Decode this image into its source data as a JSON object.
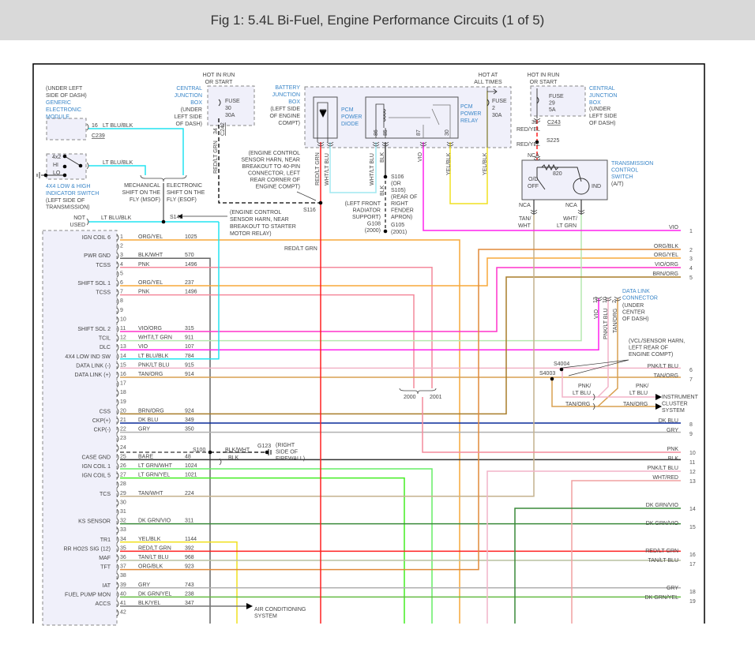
{
  "title": "Fig 1: 5.4L Bi-Fuel, Engine Performance Circuits (1 of 5)",
  "colors": {
    "ORG/YEL": "#f7a83a",
    "PNK": "#f48a9c",
    "BLK/WHT": "#666666",
    "VIO/ORG": "#ff33cc",
    "WHT/LT GRN": "#b6e8b0",
    "VIO": "#ff22ee",
    "LT BLU/BLK": "#22e4f0",
    "PNK/LT BLU": "#f2b4c8",
    "TAN/ORG": "#d9a050",
    "BRN/ORG": "#a87d2a",
    "DK BLU": "#0a2a9a",
    "GRY": "#b0b0b0",
    "BARE": "#333333",
    "LT GRN/WHT": "#66ee66",
    "LT GRN/YEL": "#44ee22",
    "TAN/WHT": "#c4b28e",
    "DK GRN/VIO": "#3a8a3a",
    "YEL/BLK": "#f0e020",
    "RED/LT GRN": "#ff2020",
    "TAN/LT BLU": "#b8c0a0",
    "ORG/BLK": "#e08a3a",
    "DK GRN/YEL": "#66bb44",
    "BLK/YEL": "#777777",
    "WHT/RED": "#f0a0a0",
    "WHT/LT BLU": "#a0e8f0",
    "BLK": "#444444",
    "RED/YEL": "#ff2020",
    "module_fill": "#f0f0fa",
    "label_blue": "#3a86c8"
  },
  "gem": {
    "location": [
      "(UNDER LEFT",
      "SIDE OF DASH)"
    ],
    "name": [
      "GENERIC",
      "ELECTRONIC",
      "MODULE"
    ],
    "pin": "16",
    "wire": "LT BLU/BLK",
    "connector": "C239"
  },
  "switch4x4": {
    "positions": [
      "4x2",
      "HI",
      "LO"
    ],
    "wire": "LT BLU/BLK",
    "name": [
      "4X4 LOW & HIGH",
      "INDICATOR SWITCH"
    ],
    "location": [
      "(LEFT SIDE OF",
      "TRANSMISSION)"
    ]
  },
  "shift": {
    "mechanical": [
      "MECHANICAL",
      "SHIFT ON THE",
      "FLY (MSOF)"
    ],
    "electronic": [
      "ELECTRONIC",
      "SHIFT ON THE",
      "FLY (ESOF)"
    ]
  },
  "not_used": {
    "text": [
      "NOT",
      "USED"
    ],
    "wire": "LT BLU/BLK",
    "splice": "S142",
    "note": [
      "(ENGINE CONTROL",
      "SENSOR HARN, NEAR",
      "BREAKOUT TO STARTER",
      "MOTOR RELAY)"
    ]
  },
  "cjb1": {
    "hot": [
      "HOT IN RUN",
      "OR START"
    ],
    "name": [
      "CENTRAL",
      "JUNCTION",
      "BOX"
    ],
    "location": [
      "(UNDER",
      "LEFT SIDE",
      "OF DASH)"
    ],
    "fuse": [
      "FUSE",
      "30",
      "30A"
    ],
    "pin": "34",
    "connector": "C242",
    "wire": "RED/LT GRN"
  },
  "s116": {
    "note": [
      "(ENGINE CONTROL",
      "SENSOR HARN, NEAR",
      "BREAKOUT TO 40-PIN",
      "CONNECTOR, LEFT",
      "REAR CORNER OF",
      "ENGINE COMPT)"
    ],
    "splice": "S116"
  },
  "bjb": {
    "name": [
      "BATTERY",
      "JUNCTION",
      "BOX"
    ],
    "location": [
      "(LEFT SIDE",
      "OF ENGINE",
      "COMPT)"
    ],
    "diode": [
      "PCM",
      "POWER",
      "DIODE"
    ],
    "relay": [
      "PCM",
      "POWER",
      "RELAY"
    ],
    "relay_pins": [
      "86",
      "85",
      "87",
      "30"
    ],
    "hot": [
      "HOT AT",
      "ALL TIMES"
    ],
    "fuse": [
      "FUSE",
      "2",
      "30A"
    ],
    "wires": [
      "RED/LT GRN",
      "WHT/LT BLU",
      "WHT/LT BLU",
      "BLK",
      "VIO",
      "YEL/BLK",
      "YEL/BLK",
      "BLK"
    ]
  },
  "ground": {
    "splice": [
      "S106",
      "(OR",
      "S105)",
      "(REAR OF",
      "RIGHT",
      "FENDER",
      "APRON)"
    ],
    "g108": [
      "(LEFT FRONT",
      "RADIATOR",
      "SUPPORT)",
      "G108",
      "(2000)"
    ],
    "g105": [
      "G105",
      "(2001)"
    ]
  },
  "cjb2": {
    "hot": [
      "HOT IN RUN",
      "OR START"
    ],
    "fuse": [
      "FUSE",
      "29",
      "5A"
    ],
    "name": [
      "CENTRAL",
      "JUNCTION",
      "BOX"
    ],
    "location": [
      "(UNDER",
      "LEFT SIDE",
      "OF DASH)"
    ],
    "pin": "31",
    "connector": "C243",
    "wire1": "RED/YEL",
    "splice": "S225",
    "wire2": "RED/YEL",
    "nca": "NCA"
  },
  "tcs": {
    "name": [
      "TRANSMISSION",
      "CONTROL",
      "SWITCH"
    ],
    "sub": "(A/T)",
    "resistor": "820",
    "od": [
      "O/D",
      "OFF"
    ],
    "ind": "IND",
    "nca": "NCA",
    "wire_left": [
      "TAN/",
      "WHT"
    ],
    "wire_right": [
      "WHT/",
      "LT GRN"
    ]
  },
  "dlc": {
    "name": [
      "DATA LINK",
      "CONNECTOR"
    ],
    "location": [
      "(UNDER",
      "CENTER",
      "OF DASH)"
    ],
    "pins": [
      "13",
      "10",
      "2"
    ],
    "wires": [
      "VIO",
      "PNK/LT BLU",
      "TAN/ORG"
    ]
  },
  "vcl": {
    "note": [
      "(VCL/SENSOR HARN,",
      "LEFT REAR OF",
      "ENGINE COMPT)"
    ],
    "s4004": "S4004",
    "s4003": "S4003",
    "pnk": [
      "PNK/",
      "LT BLU"
    ],
    "tan": "TAN/ORG",
    "cluster": [
      "INSTRUMENT",
      "CLUSTER",
      "SYSTEM"
    ]
  },
  "years": [
    "2000",
    "2001"
  ],
  "mid_label": "RED/LT GRN",
  "s100": {
    "splice": "S100",
    "wire1": "BLK/WHT",
    "wire2": "BLK",
    "ground": "G123",
    "note": [
      "(RIGHT",
      "SIDE OF",
      "FIREWALL)"
    ]
  },
  "ac": [
    "AIR CONDITIONING",
    "SYSTEM"
  ],
  "pins": [
    {
      "pin": "1",
      "name": "IGN COIL 6",
      "color": "ORG/YEL",
      "circuit": "1025"
    },
    {
      "pin": "2",
      "name": "",
      "color": "",
      "circuit": ""
    },
    {
      "pin": "3",
      "name": "PWR GND",
      "color": "BLK/WHT",
      "circuit": "570"
    },
    {
      "pin": "4",
      "name": "TCSS",
      "color": "PNK",
      "circuit": "1496"
    },
    {
      "pin": "5",
      "name": "",
      "color": "",
      "circuit": ""
    },
    {
      "pin": "6",
      "name": "SHIFT SOL 1",
      "color": "ORG/YEL",
      "circuit": "237"
    },
    {
      "pin": "7",
      "name": "TCSS",
      "color": "PNK",
      "circuit": "1496"
    },
    {
      "pin": "8",
      "name": "",
      "color": "",
      "circuit": ""
    },
    {
      "pin": "9",
      "name": "",
      "color": "",
      "circuit": ""
    },
    {
      "pin": "10",
      "name": "",
      "color": "",
      "circuit": ""
    },
    {
      "pin": "11",
      "name": "SHIFT SOL 2",
      "color": "VIO/ORG",
      "circuit": "315"
    },
    {
      "pin": "12",
      "name": "TCIL",
      "color": "WHT/LT GRN",
      "circuit": "911"
    },
    {
      "pin": "13",
      "name": "DLC",
      "color": "VIO",
      "circuit": "107"
    },
    {
      "pin": "14",
      "name": "4X4 LOW IND SW",
      "color": "LT BLU/BLK",
      "circuit": "784"
    },
    {
      "pin": "15",
      "name": "DATA LINK (-)",
      "color": "PNK/LT BLU",
      "circuit": "915"
    },
    {
      "pin": "16",
      "name": "DATA LINK (+)",
      "color": "TAN/ORG",
      "circuit": "914"
    },
    {
      "pin": "17",
      "name": "",
      "color": "",
      "circuit": ""
    },
    {
      "pin": "18",
      "name": "",
      "color": "",
      "circuit": ""
    },
    {
      "pin": "19",
      "name": "",
      "color": "",
      "circuit": ""
    },
    {
      "pin": "20",
      "name": "CSS",
      "color": "BRN/ORG",
      "circuit": "924"
    },
    {
      "pin": "21",
      "name": "CKP(+)",
      "color": "DK BLU",
      "circuit": "349"
    },
    {
      "pin": "22",
      "name": "CKP(-)",
      "color": "GRY",
      "circuit": "350"
    },
    {
      "pin": "23",
      "name": "",
      "color": "",
      "circuit": ""
    },
    {
      "pin": "24",
      "name": "",
      "color": "",
      "circuit": ""
    },
    {
      "pin": "25",
      "name": "CASE GND",
      "color": "BARE",
      "circuit": "48"
    },
    {
      "pin": "26",
      "name": "IGN COIL 1",
      "color": "LT GRN/WHT",
      "circuit": "1024"
    },
    {
      "pin": "27",
      "name": "IGN COIL 5",
      "color": "LT GRN/YEL",
      "circuit": "1021"
    },
    {
      "pin": "28",
      "name": "",
      "color": "",
      "circuit": ""
    },
    {
      "pin": "29",
      "name": "TCS",
      "color": "TAN/WHT",
      "circuit": "224"
    },
    {
      "pin": "30",
      "name": "",
      "color": "",
      "circuit": ""
    },
    {
      "pin": "31",
      "name": "",
      "color": "",
      "circuit": ""
    },
    {
      "pin": "32",
      "name": "KS SENSOR",
      "color": "DK GRN/VIO",
      "circuit": "311"
    },
    {
      "pin": "33",
      "name": "",
      "color": "",
      "circuit": ""
    },
    {
      "pin": "34",
      "name": "TR1",
      "color": "YEL/BLK",
      "circuit": "1144"
    },
    {
      "pin": "35",
      "name": "RR HO2S SIG (12)",
      "color": "RED/LT GRN",
      "circuit": "392"
    },
    {
      "pin": "36",
      "name": "MAF",
      "color": "TAN/LT BLU",
      "circuit": "968"
    },
    {
      "pin": "37",
      "name": "TFT",
      "color": "ORG/BLK",
      "circuit": "923"
    },
    {
      "pin": "38",
      "name": "",
      "color": "",
      "circuit": ""
    },
    {
      "pin": "39",
      "name": "IAT",
      "color": "GRY",
      "circuit": "743"
    },
    {
      "pin": "40",
      "name": "FUEL PUMP MON",
      "color": "DK GRN/YEL",
      "circuit": "238"
    },
    {
      "pin": "41",
      "name": "ACCS",
      "color": "BLK/YEL",
      "circuit": "347"
    },
    {
      "pin": "42",
      "name": "",
      "color": "",
      "circuit": ""
    }
  ],
  "right": [
    {
      "num": "1",
      "label": "VIO"
    },
    {
      "num": "2",
      "label": "ORG/BLK"
    },
    {
      "num": "3",
      "label": "ORG/YEL"
    },
    {
      "num": "4",
      "label": "VIO/ORG"
    },
    {
      "num": "5",
      "label": "BRN/ORG"
    },
    {
      "num": "6",
      "label": "PNK/LT BLU"
    },
    {
      "num": "7",
      "label": "TAN/ORG"
    },
    {
      "num": "8",
      "label": "DK BLU"
    },
    {
      "num": "9",
      "label": "GRY"
    },
    {
      "num": "10",
      "label": "PNK"
    },
    {
      "num": "11",
      "label": "BLK"
    },
    {
      "num": "12",
      "label": "PNK/LT BLU"
    },
    {
      "num": "13",
      "label": "WHT/RED"
    },
    {
      "num": "14",
      "label": "DK GRN/VIO"
    },
    {
      "num": "15",
      "label": "DK GRN/VIO"
    },
    {
      "num": "16",
      "label": "RED/LT GRN"
    },
    {
      "num": "17",
      "label": "TAN/LT BLU"
    },
    {
      "num": "18",
      "label": "GRY"
    },
    {
      "num": "19",
      "label": "DK GRN/YEL"
    }
  ]
}
